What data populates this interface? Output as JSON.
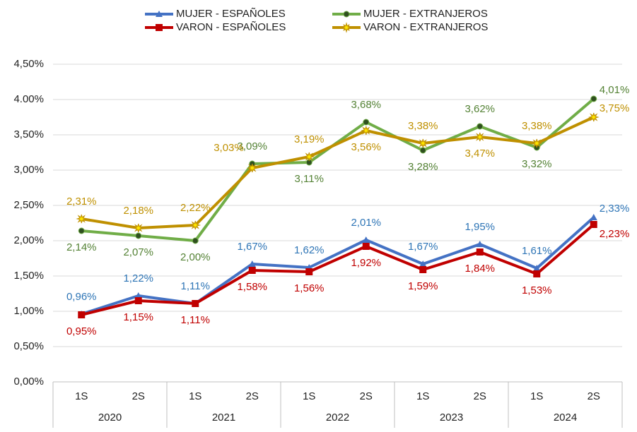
{
  "chart_data": {
    "type": "line",
    "categories": [
      "1S",
      "2S",
      "1S",
      "2S",
      "1S",
      "2S",
      "1S",
      "2S",
      "1S",
      "2S"
    ],
    "groups": [
      "2020",
      "2021",
      "2022",
      "2023",
      "2024"
    ],
    "series": [
      {
        "name": "MUJER - ESPAÑOLES",
        "color": "#4472c4",
        "label_color": "#2e75b6",
        "marker": "triangle",
        "values": [
          0.96,
          1.22,
          1.11,
          1.67,
          1.62,
          2.01,
          1.67,
          1.95,
          1.61,
          2.33
        ],
        "value_labels": [
          "0,96%",
          "1,22%",
          "1,11%",
          "1,67%",
          "1,62%",
          "2,01%",
          "1,67%",
          "1,95%",
          "1,61%",
          "2,33%"
        ]
      },
      {
        "name": "MUJER - EXTRANJEROS",
        "color": "#70ad47",
        "label_color": "#548235",
        "marker": "circle",
        "values": [
          2.14,
          2.07,
          2.0,
          3.09,
          3.11,
          3.68,
          3.28,
          3.62,
          3.32,
          4.01
        ],
        "value_labels": [
          "2,14%",
          "2,07%",
          "2,00%",
          "3,09%",
          "3,11%",
          "3,68%",
          "3,28%",
          "3,62%",
          "3,32%",
          "4,01%"
        ]
      },
      {
        "name": "VARON - ESPAÑOLES",
        "color": "#c00000",
        "label_color": "#c00000",
        "marker": "square",
        "values": [
          0.95,
          1.15,
          1.11,
          1.58,
          1.56,
          1.92,
          1.59,
          1.84,
          1.53,
          2.23
        ],
        "value_labels": [
          "0,95%",
          "1,15%",
          "1,11%",
          "1,58%",
          "1,56%",
          "1,92%",
          "1,59%",
          "1,84%",
          "1,53%",
          "2,23%"
        ]
      },
      {
        "name": "VARON - EXTRANJEROS",
        "color": "#bf9000",
        "label_color": "#bf9000",
        "marker": "star",
        "values": [
          2.31,
          2.18,
          2.22,
          3.03,
          3.19,
          3.56,
          3.38,
          3.47,
          3.38,
          3.75
        ],
        "value_labels": [
          "2,31%",
          "2,18%",
          "2,22%",
          "3,03%",
          "3,19%",
          "3,56%",
          "3,38%",
          "3,47%",
          "3,38%",
          "3,75%"
        ]
      }
    ],
    "ylim": [
      0,
      4.5
    ],
    "yticks": [
      {
        "value": 0,
        "label": "0,00%"
      },
      {
        "value": 0.5,
        "label": "0,50%"
      },
      {
        "value": 1,
        "label": "1,00%"
      },
      {
        "value": 1.5,
        "label": "1,50%"
      },
      {
        "value": 2,
        "label": "2,00%"
      },
      {
        "value": 2.5,
        "label": "2,50%"
      },
      {
        "value": 3,
        "label": "3,00%"
      },
      {
        "value": 3.5,
        "label": "3,50%"
      },
      {
        "value": 4,
        "label": "4.00%"
      },
      {
        "value": 4.5,
        "label": "4,50%"
      }
    ],
    "grid": true,
    "legend": "top"
  }
}
